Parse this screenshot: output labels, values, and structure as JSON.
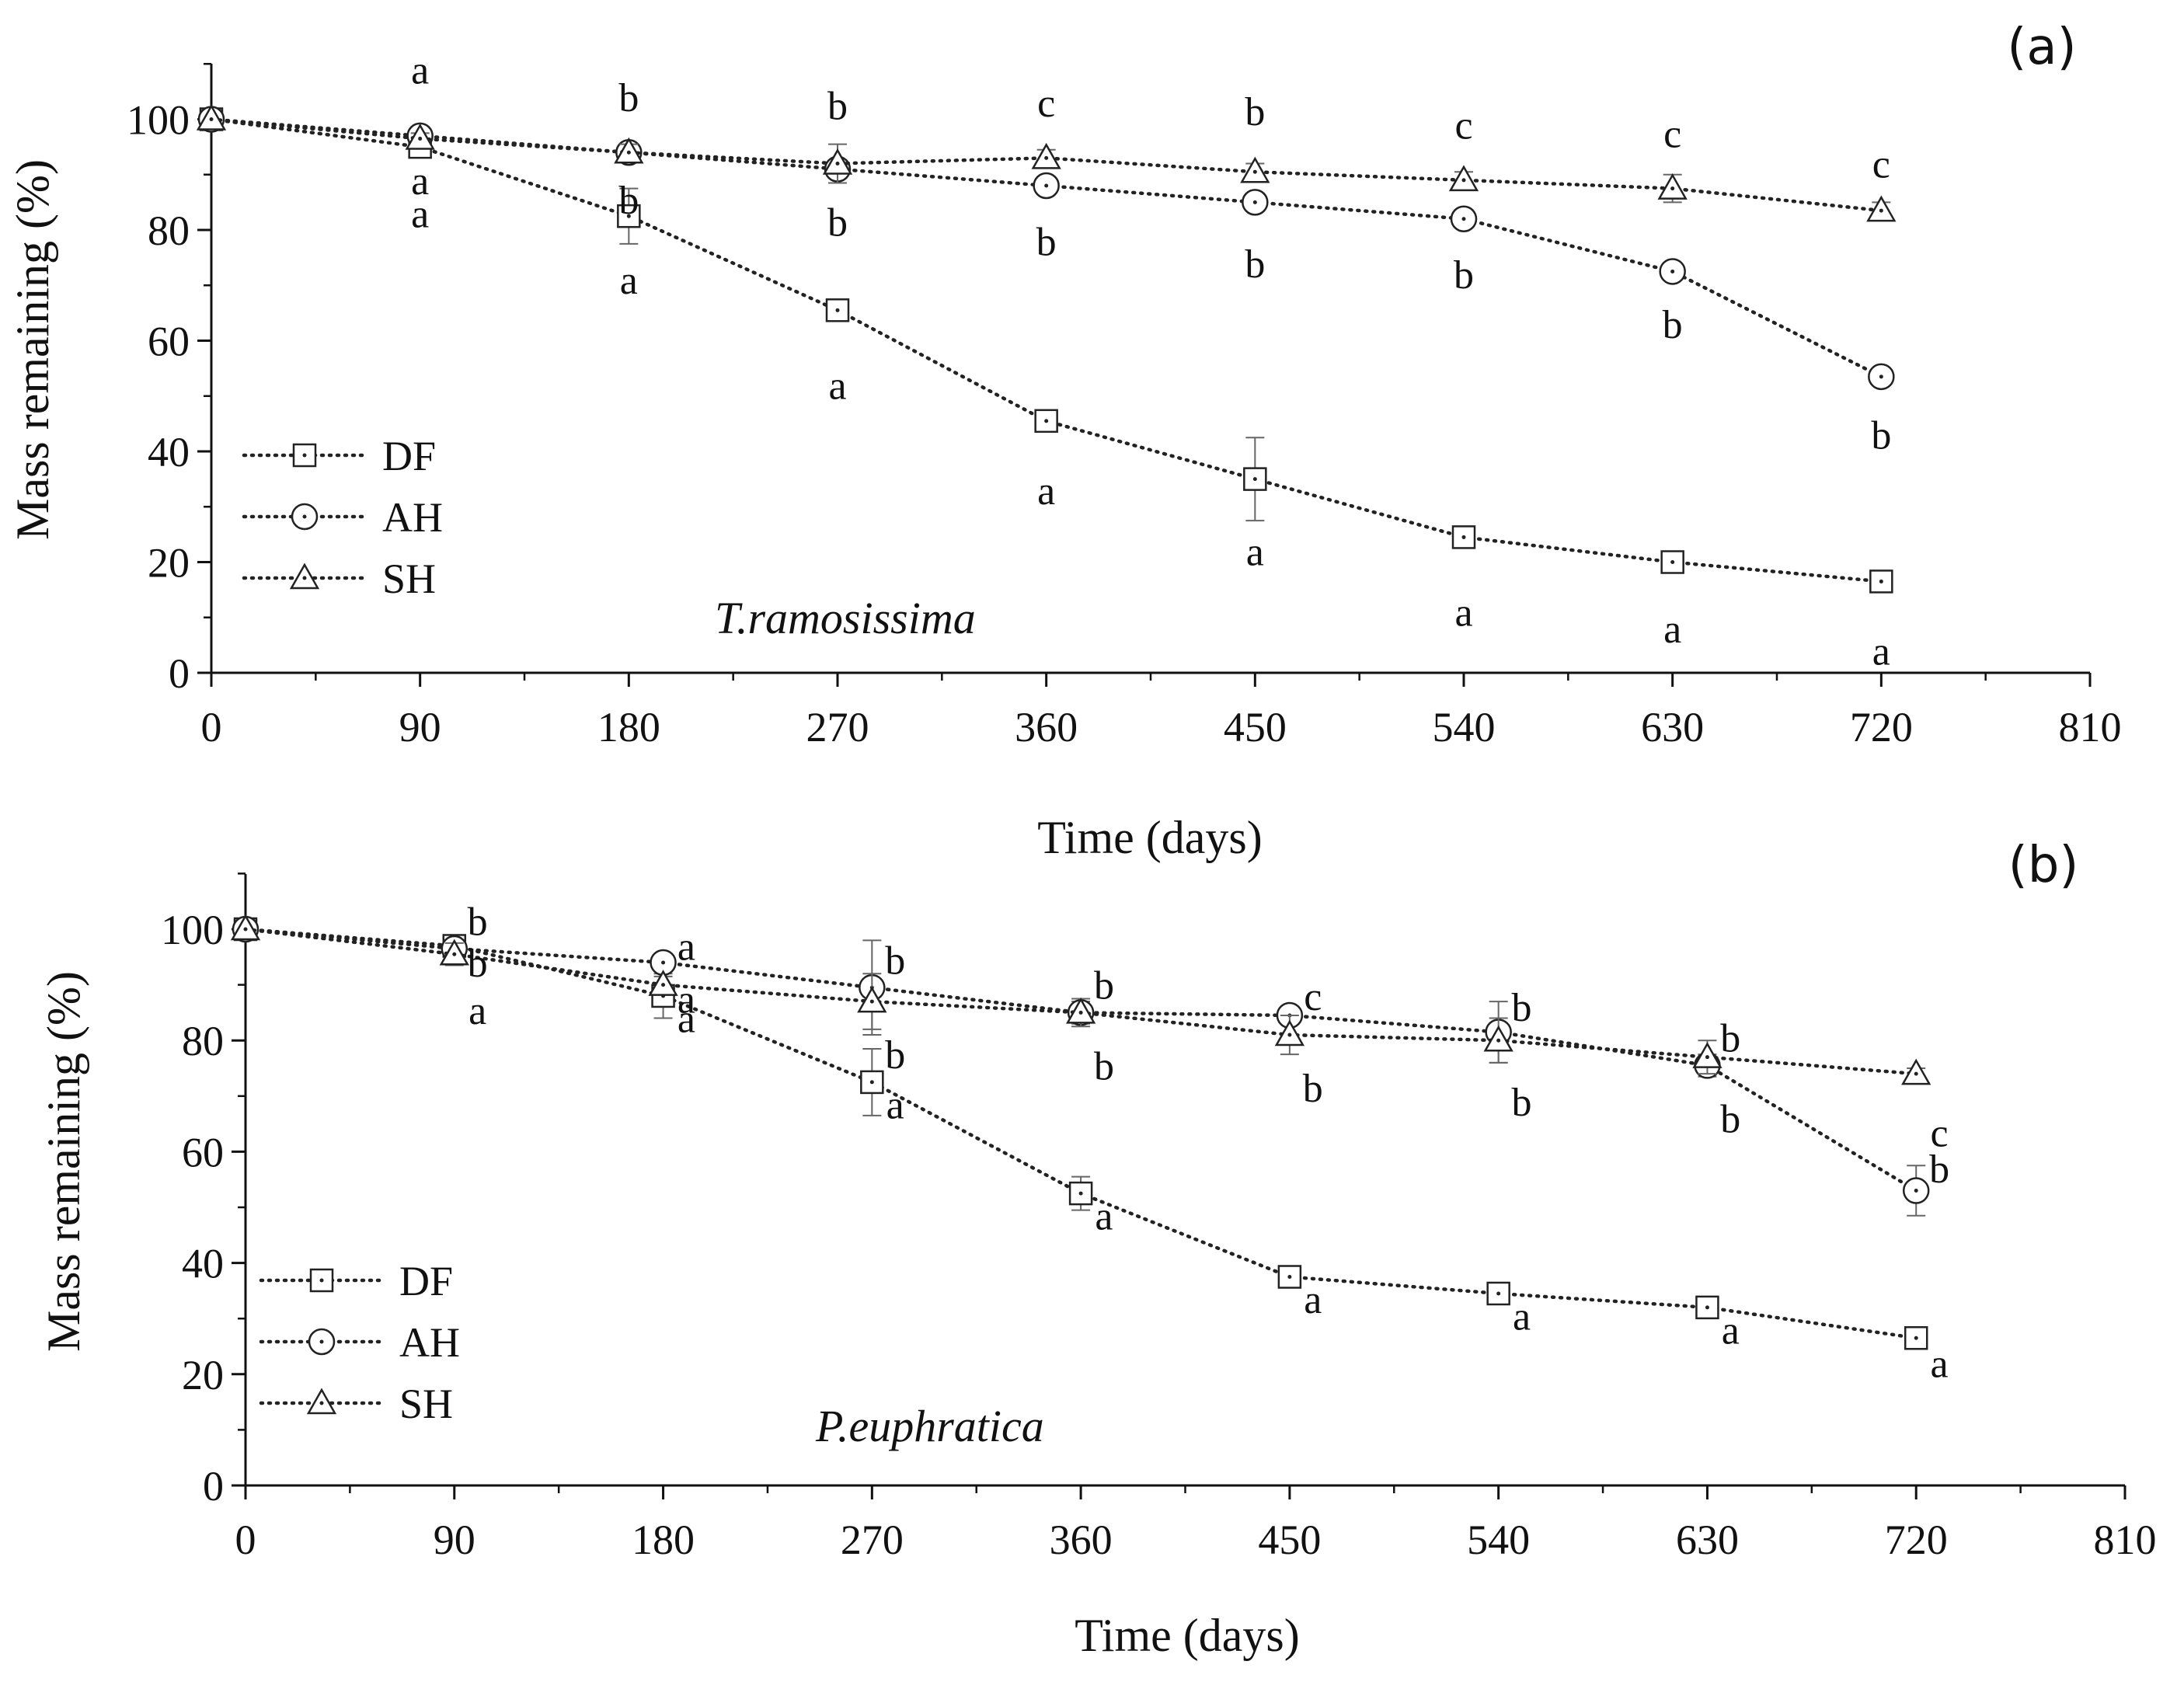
{
  "chart_data": [
    {
      "type": "line",
      "panel_label": "(a)",
      "annotation": "T.ramosissima",
      "xlabel": "Time (days)",
      "ylabel": "Mass remaining (%)",
      "xlim": [
        0,
        810
      ],
      "ylim": [
        0,
        110
      ],
      "xticks": [
        0,
        90,
        180,
        270,
        360,
        450,
        540,
        630,
        720,
        810
      ],
      "yticks": [
        0,
        20,
        40,
        60,
        80,
        100
      ],
      "legend_position": "bottom-left",
      "x": [
        0,
        90,
        180,
        270,
        360,
        450,
        540,
        630,
        720
      ],
      "series": [
        {
          "name": "DF",
          "marker": "square",
          "values": [
            100,
            95,
            82.5,
            65.5,
            45.5,
            35,
            24.5,
            20,
            16.5
          ],
          "errors": [
            0,
            1,
            5,
            1,
            1,
            7.5,
            1.5,
            1.5,
            1.5
          ]
        },
        {
          "name": "AH",
          "marker": "circle",
          "values": [
            100,
            97,
            94,
            91,
            88,
            85,
            82,
            72.5,
            53.5
          ],
          "errors": [
            0,
            1,
            1,
            1.5,
            1,
            1,
            1,
            1.5,
            1.5
          ]
        },
        {
          "name": "SH",
          "marker": "triangle",
          "values": [
            100,
            96.5,
            94,
            92,
            93,
            90.5,
            89,
            87.5,
            83.5
          ],
          "errors": [
            0,
            1,
            1.5,
            3.5,
            1.5,
            1.5,
            1.5,
            2.5,
            1.5
          ]
        }
      ],
      "sig_labels": [
        {
          "x": 90,
          "y": 109,
          "text": "a"
        },
        {
          "x": 90,
          "y": 89,
          "text": "a"
        },
        {
          "x": 90,
          "y": 83,
          "text": "a"
        },
        {
          "x": 180,
          "y": 104,
          "text": "b"
        },
        {
          "x": 180,
          "y": 85.5,
          "text": "b"
        },
        {
          "x": 180,
          "y": 71,
          "text": "a"
        },
        {
          "x": 270,
          "y": 102.5,
          "text": "b"
        },
        {
          "x": 270,
          "y": 81.5,
          "text": "b"
        },
        {
          "x": 270,
          "y": 52,
          "text": "a"
        },
        {
          "x": 360,
          "y": 103,
          "text": "c"
        },
        {
          "x": 360,
          "y": 78,
          "text": "b"
        },
        {
          "x": 360,
          "y": 33,
          "text": "a"
        },
        {
          "x": 450,
          "y": 101.5,
          "text": "b"
        },
        {
          "x": 450,
          "y": 74,
          "text": "b"
        },
        {
          "x": 450,
          "y": 22,
          "text": "a"
        },
        {
          "x": 540,
          "y": 99,
          "text": "c"
        },
        {
          "x": 540,
          "y": 72,
          "text": "b"
        },
        {
          "x": 540,
          "y": 11,
          "text": "a"
        },
        {
          "x": 630,
          "y": 97.5,
          "text": "c"
        },
        {
          "x": 630,
          "y": 63,
          "text": "b"
        },
        {
          "x": 630,
          "y": 8,
          "text": "a"
        },
        {
          "x": 720,
          "y": 92,
          "text": "c"
        },
        {
          "x": 720,
          "y": 43,
          "text": "b"
        },
        {
          "x": 720,
          "y": 4,
          "text": "a"
        }
      ]
    },
    {
      "type": "line",
      "panel_label": "(b)",
      "annotation": "P.euphratica",
      "xlabel": "Time (days)",
      "ylabel": "Mass remaining (%)",
      "xlim": [
        0,
        810
      ],
      "ylim": [
        0,
        110
      ],
      "xticks": [
        0,
        90,
        180,
        270,
        360,
        450,
        540,
        630,
        720,
        810
      ],
      "yticks": [
        0,
        20,
        40,
        60,
        80,
        100
      ],
      "legend_position": "bottom-left",
      "x": [
        0,
        90,
        180,
        270,
        360,
        450,
        540,
        630,
        720
      ],
      "series": [
        {
          "name": "DF",
          "marker": "square",
          "values": [
            100,
            97,
            88,
            72.5,
            52.5,
            37.5,
            34.5,
            32,
            26.5
          ],
          "errors": [
            0,
            1,
            4,
            6,
            3,
            1,
            1.5,
            1,
            1
          ]
        },
        {
          "name": "AH",
          "marker": "circle",
          "values": [
            100,
            96.5,
            94,
            89.5,
            85,
            84.5,
            81.5,
            75.5,
            53
          ],
          "errors": [
            0,
            1,
            1,
            8.5,
            2,
            1.5,
            5.5,
            2,
            4.5
          ]
        },
        {
          "name": "SH",
          "marker": "triangle",
          "values": [
            100,
            95.5,
            90,
            87,
            85,
            81,
            80,
            77,
            74
          ],
          "errors": [
            0,
            2,
            1.5,
            5,
            2.5,
            3.5,
            4,
            3,
            1
          ]
        }
      ],
      "sig_labels": [
        {
          "x": 100,
          "y": 101.5,
          "text": "b"
        },
        {
          "x": 100,
          "y": 94,
          "text": "b"
        },
        {
          "x": 100,
          "y": 85.5,
          "text": "a"
        },
        {
          "x": 190,
          "y": 97,
          "text": "a"
        },
        {
          "x": 190,
          "y": 87.5,
          "text": "a"
        },
        {
          "x": 190,
          "y": 84,
          "text": "a"
        },
        {
          "x": 280,
          "y": 94.5,
          "text": "b"
        },
        {
          "x": 280,
          "y": 77.5,
          "text": "b"
        },
        {
          "x": 280,
          "y": 68.5,
          "text": "a"
        },
        {
          "x": 370,
          "y": 90,
          "text": "b"
        },
        {
          "x": 370,
          "y": 75.5,
          "text": "b"
        },
        {
          "x": 370,
          "y": 48.5,
          "text": "a"
        },
        {
          "x": 460,
          "y": 88,
          "text": "c"
        },
        {
          "x": 460,
          "y": 71.5,
          "text": "b"
        },
        {
          "x": 460,
          "y": 33.5,
          "text": "a"
        },
        {
          "x": 550,
          "y": 86,
          "text": "b"
        },
        {
          "x": 550,
          "y": 69,
          "text": "b"
        },
        {
          "x": 550,
          "y": 30.5,
          "text": "a"
        },
        {
          "x": 640,
          "y": 80.5,
          "text": "b"
        },
        {
          "x": 640,
          "y": 66,
          "text": "b"
        },
        {
          "x": 640,
          "y": 28,
          "text": "a"
        },
        {
          "x": 730,
          "y": 63.5,
          "text": "c"
        },
        {
          "x": 730,
          "y": 57,
          "text": "b"
        },
        {
          "x": 730,
          "y": 22,
          "text": "a"
        }
      ]
    }
  ]
}
